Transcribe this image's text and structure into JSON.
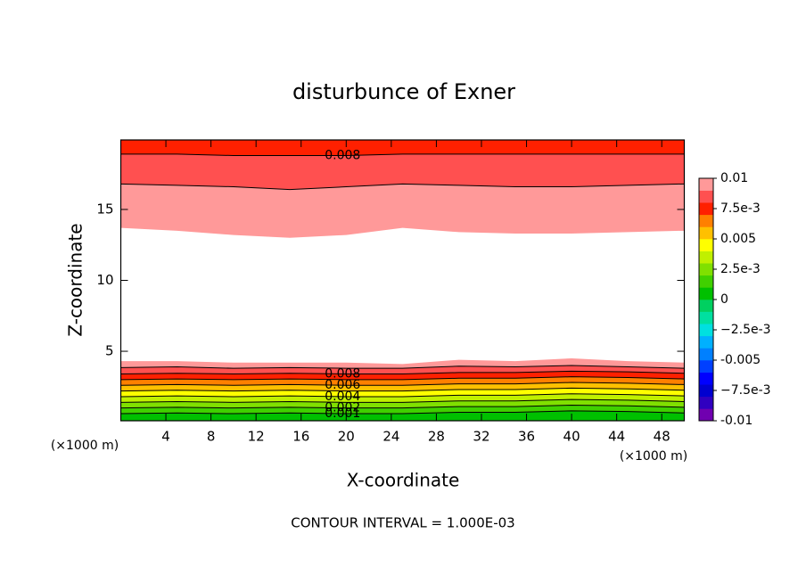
{
  "chart_data": {
    "type": "contour",
    "title": "disturbunce of Exner",
    "x_label": "X-coordinate",
    "y_label": "Z-coordinate",
    "x_unit_label": "(×1000 m)",
    "y_unit_label": "(×1000 m)",
    "footer": "CONTOUR INTERVAL = 1.000E-03",
    "xlim": [
      0,
      50
    ],
    "ylim": [
      0.1,
      19.9
    ],
    "xticks": [
      4,
      8,
      12,
      16,
      20,
      24,
      28,
      32,
      36,
      40,
      44,
      48
    ],
    "yticks": [
      5,
      10,
      15
    ],
    "x": [
      0,
      5,
      10,
      15,
      20,
      25,
      30,
      35,
      40,
      45,
      50
    ],
    "contours": [
      {
        "level": 0.01,
        "side": "below",
        "line": false,
        "labeled": false,
        "z": [
          4.3,
          4.3,
          4.2,
          4.2,
          4.2,
          4.1,
          4.4,
          4.3,
          4.5,
          4.3,
          4.2
        ]
      },
      {
        "level": 0.009,
        "side": "below",
        "line": true,
        "labeled": false,
        "z": [
          3.85,
          3.9,
          3.8,
          3.85,
          3.8,
          3.8,
          3.95,
          3.9,
          4.0,
          3.9,
          3.8
        ]
      },
      {
        "level": 0.008,
        "side": "below",
        "line": true,
        "labeled": true,
        "z": [
          3.4,
          3.45,
          3.4,
          3.45,
          3.4,
          3.4,
          3.5,
          3.5,
          3.6,
          3.55,
          3.45
        ]
      },
      {
        "level": 0.007,
        "side": "below",
        "line": true,
        "labeled": false,
        "z": [
          3.0,
          3.05,
          3.0,
          3.05,
          3.0,
          3.0,
          3.1,
          3.1,
          3.2,
          3.15,
          3.05
        ]
      },
      {
        "level": 0.006,
        "side": "below",
        "line": true,
        "labeled": true,
        "z": [
          2.6,
          2.65,
          2.6,
          2.65,
          2.6,
          2.6,
          2.7,
          2.7,
          2.8,
          2.75,
          2.65
        ]
      },
      {
        "level": 0.005,
        "side": "below",
        "line": true,
        "labeled": false,
        "z": [
          2.2,
          2.25,
          2.2,
          2.25,
          2.2,
          2.2,
          2.3,
          2.3,
          2.4,
          2.35,
          2.25
        ]
      },
      {
        "level": 0.004,
        "side": "below",
        "line": true,
        "labeled": true,
        "z": [
          1.8,
          1.85,
          1.8,
          1.85,
          1.8,
          1.8,
          1.9,
          1.9,
          2.0,
          1.95,
          1.85
        ]
      },
      {
        "level": 0.003,
        "side": "below",
        "line": true,
        "labeled": false,
        "z": [
          1.4,
          1.45,
          1.4,
          1.45,
          1.4,
          1.4,
          1.5,
          1.5,
          1.6,
          1.55,
          1.45
        ]
      },
      {
        "level": 0.002,
        "side": "below",
        "line": true,
        "labeled": true,
        "z": [
          1.0,
          1.05,
          1.0,
          1.05,
          1.0,
          1.0,
          1.1,
          1.1,
          1.2,
          1.15,
          1.05
        ]
      },
      {
        "level": 0.001,
        "side": "below",
        "line": true,
        "labeled": true,
        "z": [
          0.6,
          0.65,
          0.6,
          0.65,
          0.6,
          0.6,
          0.7,
          0.7,
          0.8,
          0.75,
          0.65
        ]
      },
      {
        "level": 0.01,
        "side": "above",
        "line": false,
        "labeled": false,
        "z": [
          13.7,
          13.5,
          13.2,
          13.0,
          13.2,
          13.7,
          13.4,
          13.3,
          13.3,
          13.4,
          13.5
        ]
      },
      {
        "level": 0.009,
        "side": "above",
        "line": true,
        "labeled": false,
        "z": [
          16.8,
          16.7,
          16.6,
          16.4,
          16.6,
          16.8,
          16.7,
          16.6,
          16.6,
          16.7,
          16.8
        ]
      },
      {
        "level": 0.008,
        "side": "above",
        "line": true,
        "labeled": true,
        "z": [
          18.9,
          18.9,
          18.8,
          18.8,
          18.8,
          18.9,
          18.9,
          18.9,
          18.9,
          18.9,
          18.9
        ]
      }
    ],
    "clim": [
      -0.01,
      0.01
    ],
    "colors": [
      "#7000b0",
      "#3000c0",
      "#0000d0",
      "#0000ff",
      "#0040ff",
      "#0080ff",
      "#00b0ff",
      "#00e0e0",
      "#00e0a0",
      "#00d060",
      "#00c000",
      "#40d000",
      "#80e000",
      "#c0f000",
      "#ffff00",
      "#ffc000",
      "#ff8000",
      "#ff2000",
      "#ff5050",
      "#ff9999"
    ],
    "colorbar_ticks": [
      0.01,
      {
        "value": 0.0075,
        "label": "7.5e-3"
      },
      0.005,
      {
        "value": 0.0025,
        "label": "2.5e-3"
      },
      0,
      {
        "value": -0.0025,
        "label": "−2.5e-3"
      },
      -0.005,
      {
        "value": -0.0075,
        "label": "−7.5e-3"
      },
      -0.01
    ]
  }
}
